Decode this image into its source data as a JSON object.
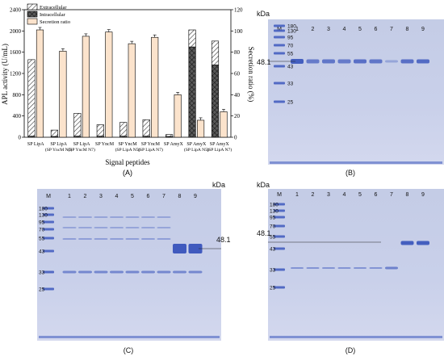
{
  "chart_data": [
    {
      "panel": "(A)",
      "type": "bar",
      "xlabel": "Signal peptides",
      "ylabel": "APL activity (U/mL)",
      "y2label": "Secretion ratio (%)",
      "ylim": [
        0,
        2400
      ],
      "y2lim": [
        0,
        120
      ],
      "yticks": [
        "0",
        "400",
        "800",
        "1200",
        "1600",
        "2000",
        "2400"
      ],
      "y2ticks": [
        "0",
        "20",
        "40",
        "60",
        "80",
        "100",
        "120"
      ],
      "legend_position": "top-left",
      "categories": [
        [
          "SP LipA",
          ""
        ],
        [
          "SP LipA",
          "(SP YncM N5)"
        ],
        [
          "SP LipA",
          "(SP YncM N7)"
        ],
        [
          "SP YncM",
          ""
        ],
        [
          "SP YncM",
          "(SP LipA N5)"
        ],
        [
          "SP YncM",
          "(SP LipA N7)"
        ],
        [
          "SP AmyX",
          ""
        ],
        [
          "SP AmyX",
          "(SP LipA N5)"
        ],
        [
          "SP AmyX",
          "(SP LipA N7)"
        ]
      ],
      "series": [
        {
          "name": "Extracellular",
          "axis": "left",
          "stacked": true,
          "pattern": "hatch",
          "color": "#ffffff",
          "values": [
            1440,
            120,
            430,
            215,
            260,
            310,
            35,
            320,
            450
          ]
        },
        {
          "name": "Intracellular",
          "axis": "left",
          "stacked": true,
          "pattern": "crosshatch",
          "color": "#555555",
          "values": [
            20,
            15,
            20,
            20,
            20,
            20,
            15,
            1700,
            1360
          ]
        },
        {
          "name": "Secretion ratio",
          "axis": "right",
          "pattern": "solid",
          "color": "#fbe3cc",
          "values": [
            101,
            81,
            95,
            99,
            88,
            94,
            40,
            16,
            24
          ]
        }
      ]
    }
  ],
  "panels": {
    "a": {
      "caption": "(A)"
    },
    "b": {
      "caption": "(B)",
      "marker_label": "M",
      "unit": "kDa",
      "target_band": "48.1",
      "lanes": [
        "1",
        "2",
        "3",
        "4",
        "5",
        "6",
        "7",
        "8",
        "9"
      ],
      "markers": [
        "180",
        "130",
        "95",
        "70",
        "55",
        "43",
        "33",
        "25"
      ]
    },
    "c": {
      "caption": "(C)",
      "marker_label": "M",
      "unit": "kDa",
      "target_band": "48.1",
      "lanes": [
        "1",
        "2",
        "3",
        "4",
        "5",
        "6",
        "7",
        "8",
        "9"
      ],
      "markers": [
        "180",
        "130",
        "95",
        "70",
        "55",
        "43",
        "33",
        "25"
      ]
    },
    "d": {
      "caption": "(D)",
      "marker_label": "M",
      "unit": "kDa",
      "target_band": "48.1",
      "lanes": [
        "1",
        "2",
        "3",
        "4",
        "5",
        "6",
        "7",
        "8",
        "9"
      ],
      "markers": [
        "180",
        "130",
        "95",
        "70",
        "55",
        "43",
        "33",
        "25"
      ]
    }
  },
  "colors": {
    "gel_bg": "#c7cfe8",
    "band": "#3d58bd",
    "ratio_bar": "#fbe3cc"
  }
}
